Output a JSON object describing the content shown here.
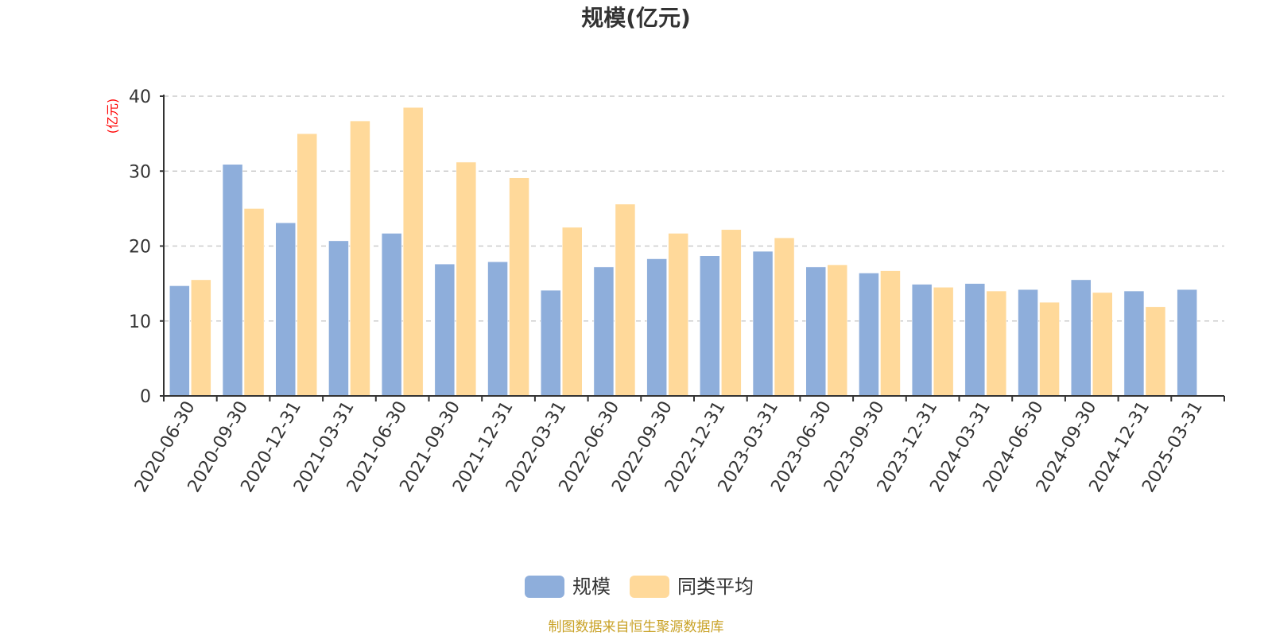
{
  "chart_data": {
    "type": "bar",
    "title": "规模(亿元)",
    "ylabel": "(亿元)",
    "xlabel": "",
    "ylim": [
      0,
      40
    ],
    "yticks": [
      0,
      10,
      20,
      30,
      40
    ],
    "grid": true,
    "legend_position": "bottom",
    "categories": [
      "2020-06-30",
      "2020-09-30",
      "2020-12-31",
      "2021-03-31",
      "2021-06-30",
      "2021-09-30",
      "2021-12-31",
      "2022-03-31",
      "2022-06-30",
      "2022-09-30",
      "2022-12-31",
      "2023-03-31",
      "2023-06-30",
      "2023-09-30",
      "2023-12-31",
      "2024-03-31",
      "2024-06-30",
      "2024-09-30",
      "2024-12-31",
      "2025-03-31"
    ],
    "series": [
      {
        "name": "规模",
        "color": "#8eaedb",
        "values": [
          14.7,
          30.9,
          23.1,
          20.7,
          21.7,
          17.6,
          17.9,
          14.1,
          17.2,
          18.3,
          18.7,
          19.3,
          17.2,
          16.4,
          14.9,
          15.0,
          14.2,
          15.5,
          14.0,
          14.2
        ]
      },
      {
        "name": "同类平均",
        "color": "#ffd99a",
        "values": [
          15.5,
          25.0,
          35.0,
          36.7,
          38.5,
          31.2,
          29.1,
          22.5,
          25.6,
          21.7,
          22.2,
          21.1,
          17.5,
          16.7,
          14.5,
          14.0,
          12.5,
          13.8,
          11.9,
          null
        ]
      }
    ]
  },
  "footer": {
    "source_note": "制图数据来自恒生聚源数据库"
  }
}
